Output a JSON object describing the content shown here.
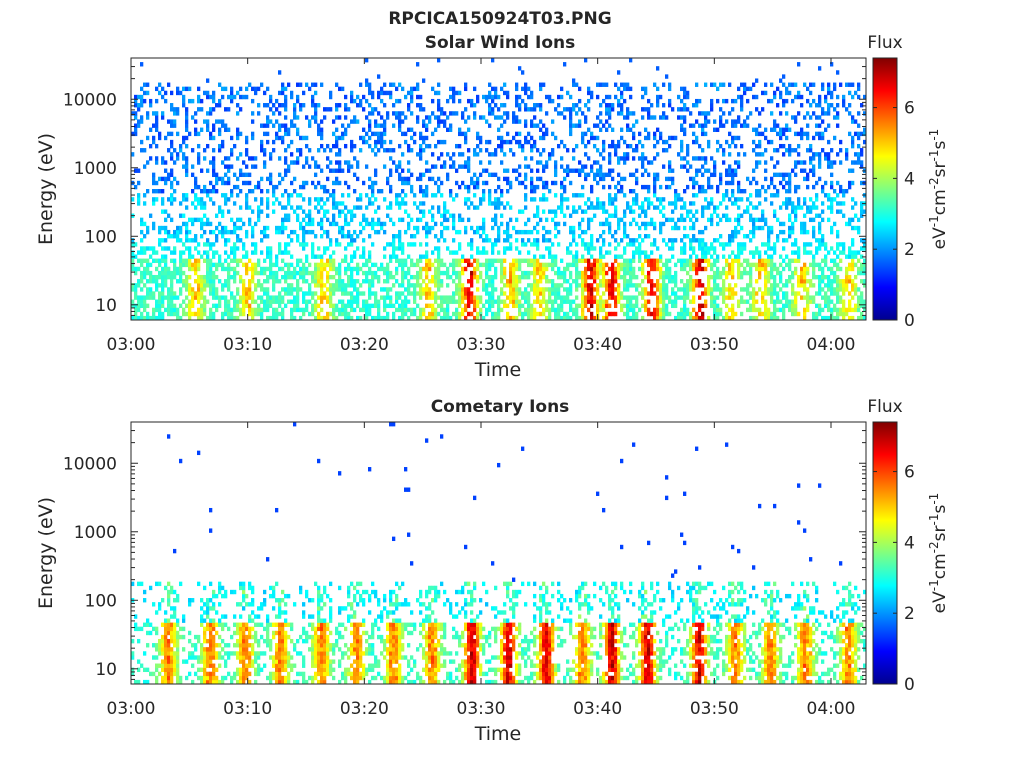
{
  "figure": {
    "title": "RPCICA150924T03.PNG"
  },
  "chart_data": [
    {
      "type": "heatmap",
      "title": "Solar Wind Ions",
      "xlabel": "Time",
      "ylabel": "Energy (eV)",
      "x_range": [
        "03:00",
        "04:03"
      ],
      "y_scale": "log",
      "y_range_ev": [
        6,
        40000
      ],
      "x_ticks": [
        "03:00",
        "03:10",
        "03:20",
        "03:30",
        "03:40",
        "03:50",
        "04:00"
      ],
      "y_ticks": [
        "10",
        "100",
        "1000",
        "10000"
      ],
      "colorbar": {
        "title": "Flux",
        "label": "eV-1cm-2sr-1s-1",
        "label_parts": [
          [
            "eV",
            ""
          ],
          [
            "-1",
            "sup"
          ],
          [
            "cm",
            ""
          ],
          [
            "-2",
            "sup"
          ],
          [
            "sr",
            ""
          ],
          [
            "-1",
            "sup"
          ],
          [
            "s",
            ""
          ],
          [
            "-1",
            "sup"
          ]
        ],
        "range": [
          0,
          7.4
        ],
        "ticks": [
          "0",
          "2",
          "4",
          "6"
        ],
        "colormap": "jet"
      },
      "grid": false,
      "enhancement_times_min": [
        5.5,
        10,
        16.5,
        25.5,
        29,
        32.5,
        35,
        39.3,
        41,
        44.5,
        48.8,
        51.5,
        54,
        57.5,
        61.5
      ],
      "intense_times_min": [
        29,
        39.5,
        41.3,
        44.8,
        48.8
      ]
    },
    {
      "type": "heatmap",
      "title": "Cometary Ions",
      "xlabel": "Time",
      "ylabel": "Energy (eV)",
      "x_range": [
        "03:00",
        "04:03"
      ],
      "y_scale": "log",
      "y_range_ev": [
        6,
        40000
      ],
      "x_ticks": [
        "03:00",
        "03:10",
        "03:20",
        "03:30",
        "03:40",
        "03:50",
        "04:00"
      ],
      "y_ticks": [
        "10",
        "100",
        "1000",
        "10000"
      ],
      "colorbar": {
        "title": "Flux",
        "label": "eV-1cm-2sr-1s-1",
        "label_parts": [
          [
            "eV",
            ""
          ],
          [
            "-1",
            "sup"
          ],
          [
            "cm",
            ""
          ],
          [
            "-2",
            "sup"
          ],
          [
            "sr",
            ""
          ],
          [
            "-1",
            "sup"
          ],
          [
            "s",
            ""
          ],
          [
            "-1",
            "sup"
          ]
        ],
        "range": [
          0,
          7.4
        ],
        "ticks": [
          "0",
          "2",
          "4",
          "6"
        ],
        "colormap": "jet"
      },
      "grid": false,
      "burst_times_min": [
        3.2,
        6.8,
        9.8,
        12.8,
        16.3,
        19.3,
        22.5,
        25.8,
        29.2,
        32.3,
        35.5,
        38.7,
        41.2,
        44.2,
        48.7,
        51.8,
        54.8,
        57.8,
        61.5
      ],
      "intense_times_min": [
        29.3,
        32.5,
        35.8,
        41.2,
        44.4,
        48.7
      ]
    }
  ]
}
